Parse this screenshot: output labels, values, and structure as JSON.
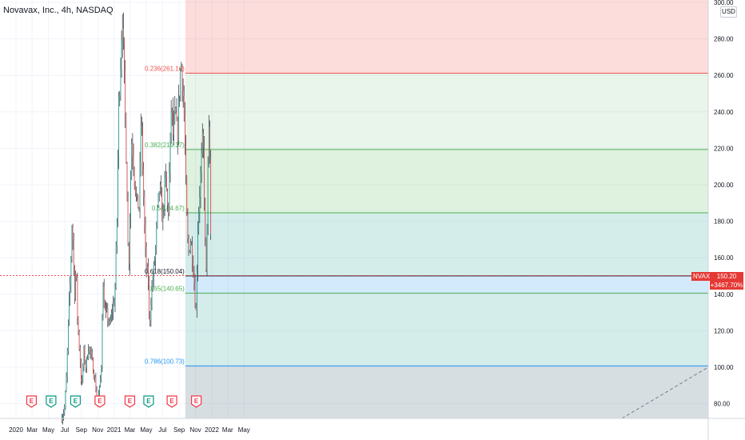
{
  "header": {
    "symbol_title": "Novavax, Inc., 4h, NASDAQ",
    "currency": "USD"
  },
  "last_price": {
    "ticker": "NVAX",
    "price": "150.20",
    "change": "+3467.70%",
    "value": 150.2
  },
  "chart_data": {
    "type": "candlestick",
    "title": "Novavax, Inc., 4h, NASDAQ",
    "ylim": [
      72,
      304
    ],
    "y_ticks": [
      80,
      100,
      120,
      140,
      160,
      180,
      200,
      220,
      240,
      260,
      280,
      300
    ],
    "y_tick_labels": [
      "80.00",
      "100.00",
      "120.00",
      "140.00",
      "160.00",
      "180.00",
      "200.00",
      "220.00",
      "240.00",
      "260.00",
      "280.00",
      "300.00"
    ],
    "x_tick_labels": [
      "2020",
      "Mar",
      "May",
      "Jul",
      "Sep",
      "Nov",
      "2021",
      "Mar",
      "May",
      "Jul",
      "Sep",
      "Nov",
      "2022",
      "Mar",
      "May"
    ],
    "price_path": [
      [
        "2020-06-20",
        72
      ],
      [
        "2020-07-01",
        78
      ],
      [
        "2020-07-08",
        96
      ],
      [
        "2020-07-15",
        128
      ],
      [
        "2020-07-22",
        148
      ],
      [
        "2020-07-28",
        180
      ],
      [
        "2020-08-02",
        165
      ],
      [
        "2020-08-06",
        138
      ],
      [
        "2020-08-12",
        155
      ],
      [
        "2020-08-18",
        125
      ],
      [
        "2020-08-25",
        110
      ],
      [
        "2020-09-02",
        88
      ],
      [
        "2020-09-10",
        108
      ],
      [
        "2020-09-18",
        100
      ],
      [
        "2020-09-28",
        112
      ],
      [
        "2020-10-08",
        105
      ],
      [
        "2020-10-20",
        95
      ],
      [
        "2020-10-31",
        80
      ],
      [
        "2020-11-08",
        88
      ],
      [
        "2020-11-14",
        98
      ],
      [
        "2020-11-20",
        145
      ],
      [
        "2020-11-28",
        130
      ],
      [
        "2020-12-08",
        128
      ],
      [
        "2020-12-16",
        122
      ],
      [
        "2020-12-26",
        132
      ],
      [
        "2021-01-04",
        138
      ],
      [
        "2021-01-12",
        182
      ],
      [
        "2021-01-18",
        242
      ],
      [
        "2021-01-25",
        265
      ],
      [
        "2021-02-01",
        295
      ],
      [
        "2021-02-09",
        252
      ],
      [
        "2021-02-14",
        225
      ],
      [
        "2021-02-18",
        200
      ],
      [
        "2021-02-24",
        150
      ],
      [
        "2021-03-01",
        185
      ],
      [
        "2021-03-08",
        225
      ],
      [
        "2021-03-16",
        210
      ],
      [
        "2021-03-26",
        190
      ],
      [
        "2021-04-05",
        188
      ],
      [
        "2021-04-12",
        240
      ],
      [
        "2021-04-20",
        200
      ],
      [
        "2021-04-27",
        165
      ],
      [
        "2021-05-03",
        152
      ],
      [
        "2021-05-08",
        150
      ],
      [
        "2021-05-13",
        122
      ],
      [
        "2021-05-20",
        140
      ],
      [
        "2021-05-27",
        150
      ],
      [
        "2021-06-05",
        165
      ],
      [
        "2021-06-12",
        185
      ],
      [
        "2021-06-20",
        200
      ],
      [
        "2021-07-01",
        180
      ],
      [
        "2021-07-12",
        205
      ],
      [
        "2021-07-22",
        182
      ],
      [
        "2021-08-03",
        245
      ],
      [
        "2021-08-10",
        225
      ],
      [
        "2021-08-18",
        240
      ],
      [
        "2021-08-25",
        225
      ],
      [
        "2021-09-01",
        250
      ],
      [
        "2021-09-08",
        268
      ],
      [
        "2021-09-15",
        252
      ],
      [
        "2021-09-21",
        232
      ],
      [
        "2021-09-26",
        200
      ],
      [
        "2021-09-30",
        178
      ],
      [
        "2021-10-05",
        162
      ],
      [
        "2021-10-13",
        170
      ],
      [
        "2021-10-20",
        162
      ],
      [
        "2021-10-26",
        150
      ],
      [
        "2021-10-30",
        138
      ],
      [
        "2021-11-03",
        130
      ],
      [
        "2021-11-09",
        175
      ],
      [
        "2021-11-15",
        192
      ],
      [
        "2021-11-23",
        212
      ],
      [
        "2021-11-29",
        228
      ],
      [
        "2021-12-06",
        178
      ],
      [
        "2021-12-10",
        145
      ],
      [
        "2021-12-15",
        190
      ],
      [
        "2021-12-20",
        225
      ],
      [
        "2021-12-23",
        232
      ],
      [
        "2021-12-27",
        178
      ],
      [
        "2021-12-31",
        150.2
      ]
    ],
    "fibonacci_levels": [
      {
        "label": "0.236(261.16)",
        "value": 261.16
      },
      {
        "label": "0.382(219.37)",
        "value": 219.37
      },
      {
        "label": "0.5(184.67)",
        "value": 184.67
      },
      {
        "label": "0.618(150.04)",
        "value": 150.04
      },
      {
        "label": "0.65(140.65)",
        "value": 140.65
      },
      {
        "label": "0.786(100.73)",
        "value": 100.73
      }
    ],
    "earnings_markers": [
      {
        "date": "2020-02-28",
        "type": "miss",
        "label": "E"
      },
      {
        "date": "2020-05-11",
        "type": "beat",
        "label": "E"
      },
      {
        "date": "2020-08-10",
        "type": "beat",
        "label": "E"
      },
      {
        "date": "2020-11-09",
        "type": "miss",
        "label": "E"
      },
      {
        "date": "2021-03-01",
        "type": "miss",
        "label": "E"
      },
      {
        "date": "2021-05-10",
        "type": "beat",
        "label": "E"
      },
      {
        "date": "2021-08-05",
        "type": "miss",
        "label": "E"
      },
      {
        "date": "2021-11-04",
        "type": "miss",
        "label": "E"
      }
    ],
    "colors": {
      "up": "#26a69a",
      "down": "#ef5350",
      "price_line": "#e53935",
      "fib_red": "#ef5350",
      "fib_green": "#4caf50",
      "fib_blue": "#2196f3"
    }
  }
}
